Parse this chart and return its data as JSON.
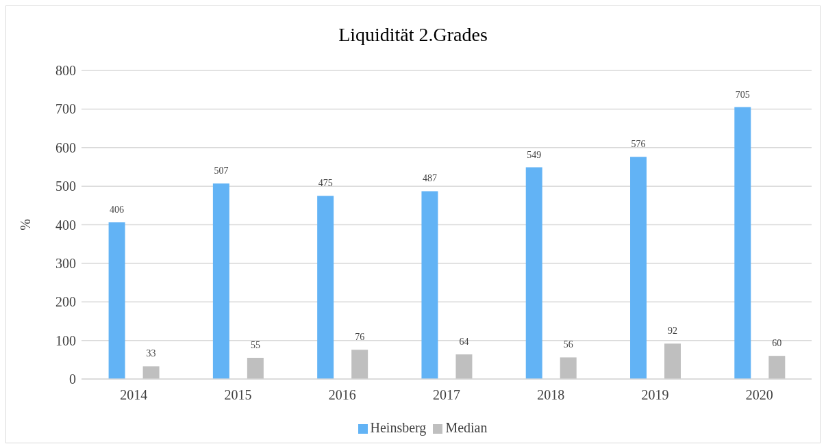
{
  "chart_data": {
    "type": "bar",
    "title": "Liquidität 2.Grades",
    "ylabel": "%",
    "categories": [
      "2014",
      "2015",
      "2016",
      "2017",
      "2018",
      "2019",
      "2020"
    ],
    "series": [
      {
        "name": "Heinsberg",
        "color": "#62b3f5",
        "values": [
          406,
          507,
          475,
          487,
          549,
          576,
          705
        ]
      },
      {
        "name": "Median",
        "color": "#bfbfbf",
        "values": [
          33,
          55,
          76,
          64,
          56,
          92,
          60
        ]
      }
    ],
    "ylim": [
      0,
      800
    ],
    "yticks": [
      0,
      100,
      200,
      300,
      400,
      500,
      600,
      700,
      800
    ],
    "grid": "y",
    "legend": "bottom",
    "data_labels": true
  }
}
